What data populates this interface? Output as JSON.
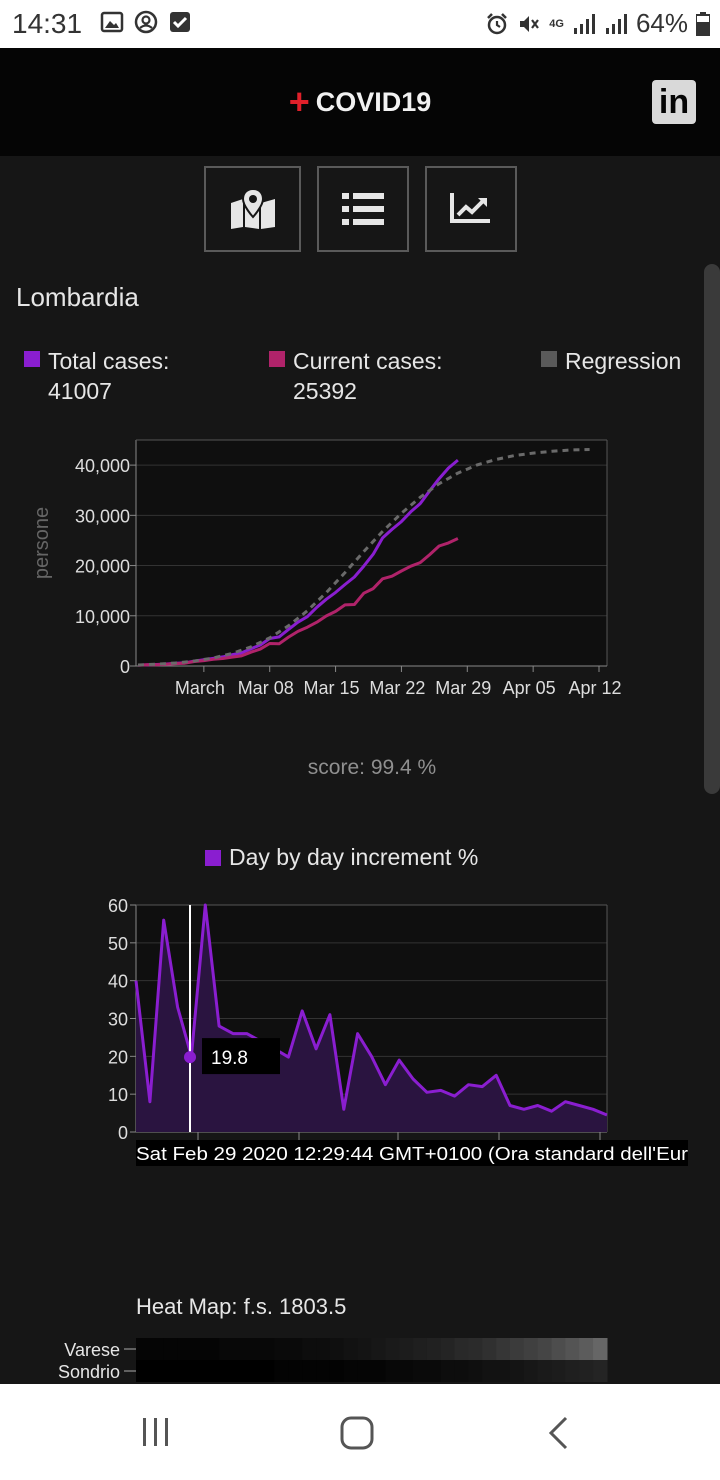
{
  "status_bar": {
    "time": "14:31",
    "network": "4G",
    "battery": "64%"
  },
  "app": {
    "title": "COVID19",
    "brand_color": "#e0202a",
    "linkedin_text": "in"
  },
  "nav_buttons": [
    {
      "icon": "map-icon"
    },
    {
      "icon": "list-icon"
    },
    {
      "icon": "chart-icon"
    }
  ],
  "region": "Lombardia",
  "legend": {
    "total_label": "Total cases:",
    "total_value": "41007",
    "current_label": "Current cases:",
    "current_value": "25392",
    "regression_label": "Regression",
    "colors": {
      "total": "#8a1ed0",
      "current": "#b0236a",
      "regression": "#5a5a5a"
    }
  },
  "score_text": "score: 99.4 %",
  "increment_legend": "Day by day increment %",
  "tooltip": {
    "value": "19.8",
    "date": "Sat Feb 29 2020 12:29:44 GMT+0100 (Ora standard dell'Eur"
  },
  "heatmap": {
    "title": "Heat Map: f.s. 1803.5",
    "rows": [
      {
        "label": "Varese",
        "levels": [
          0.02,
          0.02,
          0.02,
          0.02,
          0.02,
          0.02,
          0.03,
          0.03,
          0.03,
          0.03,
          0.04,
          0.04,
          0.05,
          0.05,
          0.06,
          0.07,
          0.08,
          0.09,
          0.1,
          0.11,
          0.12,
          0.13,
          0.14,
          0.16,
          0.17,
          0.19,
          0.21,
          0.23,
          0.25,
          0.27,
          0.3,
          0.33,
          0.36,
          0.4
        ]
      },
      {
        "label": "Sondrio",
        "levels": [
          0.0,
          0.0,
          0.0,
          0.0,
          0.0,
          0.0,
          0.0,
          0.0,
          0.0,
          0.0,
          0.01,
          0.01,
          0.01,
          0.01,
          0.01,
          0.02,
          0.02,
          0.02,
          0.03,
          0.03,
          0.04,
          0.04,
          0.05,
          0.05,
          0.06,
          0.07,
          0.07,
          0.08,
          0.09,
          0.1,
          0.11,
          0.12,
          0.13,
          0.14
        ]
      }
    ]
  },
  "chart_data": [
    {
      "type": "line",
      "ylabel": "persone",
      "ylim": [
        0,
        45000
      ],
      "yticks": [
        0,
        10000,
        20000,
        30000,
        40000
      ],
      "ytick_labels": [
        "0",
        "10,000",
        "20,000",
        "30,000",
        "40,000"
      ],
      "xrange_days": [
        0,
        48
      ],
      "xticks": [
        {
          "day": 7,
          "label": "March"
        },
        {
          "day": 14,
          "label": "Mar 08"
        },
        {
          "day": 21,
          "label": "Mar 15"
        },
        {
          "day": 28,
          "label": "Mar 22"
        },
        {
          "day": 35,
          "label": "Mar 29"
        },
        {
          "day": 42,
          "label": "Apr 05"
        },
        {
          "day": 49,
          "label": "Apr 12"
        }
      ],
      "series": [
        {
          "name": "Total cases",
          "color": "#8a1ed0",
          "values": [
            [
              0,
              172
            ],
            [
              1,
              240
            ],
            [
              2,
              305
            ],
            [
              3,
              403
            ],
            [
              4,
              531
            ],
            [
              5,
              615
            ],
            [
              6,
              984
            ],
            [
              7,
              1254
            ],
            [
              8,
              1520
            ],
            [
              9,
              1820
            ],
            [
              10,
              2251
            ],
            [
              11,
              2612
            ],
            [
              12,
              3420
            ],
            [
              13,
              4189
            ],
            [
              14,
              5469
            ],
            [
              15,
              5791
            ],
            [
              16,
              7280
            ],
            [
              17,
              8725
            ],
            [
              18,
              9820
            ],
            [
              19,
              11685
            ],
            [
              20,
              13272
            ],
            [
              21,
              14649
            ],
            [
              22,
              16220
            ],
            [
              23,
              17713
            ],
            [
              24,
              19884
            ],
            [
              25,
              22264
            ],
            [
              26,
              25515
            ],
            [
              27,
              27206
            ],
            [
              28,
              28761
            ],
            [
              29,
              30703
            ],
            [
              30,
              32346
            ],
            [
              31,
              34889
            ],
            [
              32,
              37298
            ],
            [
              33,
              39415
            ],
            [
              34,
              41007
            ]
          ]
        },
        {
          "name": "Current cases",
          "color": "#b0236a",
          "values": [
            [
              0,
              162
            ],
            [
              1,
              231
            ],
            [
              2,
              249
            ],
            [
              3,
              349
            ],
            [
              4,
              474
            ],
            [
              5,
              552
            ],
            [
              6,
              887
            ],
            [
              7,
              1077
            ],
            [
              8,
              1326
            ],
            [
              9,
              1497
            ],
            [
              10,
              1777
            ],
            [
              11,
              2008
            ],
            [
              12,
              2742
            ],
            [
              13,
              3372
            ],
            [
              14,
              4490
            ],
            [
              15,
              4427
            ],
            [
              16,
              5763
            ],
            [
              17,
              6896
            ],
            [
              18,
              7732
            ],
            [
              19,
              8725
            ],
            [
              20,
              9951
            ],
            [
              21,
              10881
            ],
            [
              22,
              12174
            ],
            [
              23,
              12255
            ],
            [
              24,
              14490
            ],
            [
              25,
              15420
            ],
            [
              26,
              17370
            ],
            [
              27,
              17885
            ],
            [
              28,
              18910
            ],
            [
              29,
              19868
            ],
            [
              30,
              20591
            ],
            [
              31,
              22189
            ],
            [
              32,
              23895
            ],
            [
              33,
              24509
            ],
            [
              34,
              25392
            ]
          ]
        },
        {
          "name": "Regression",
          "color": "#6a6a6a",
          "values": [
            [
              0,
              200
            ],
            [
              2,
              350
            ],
            [
              4,
              600
            ],
            [
              6,
              1000
            ],
            [
              8,
              1600
            ],
            [
              10,
              2500
            ],
            [
              12,
              3800
            ],
            [
              14,
              5600
            ],
            [
              16,
              8000
            ],
            [
              18,
              11000
            ],
            [
              20,
              14600
            ],
            [
              22,
              18600
            ],
            [
              24,
              22800
            ],
            [
              26,
              26800
            ],
            [
              28,
              30400
            ],
            [
              30,
              33600
            ],
            [
              32,
              36300
            ],
            [
              34,
              38400
            ],
            [
              36,
              40000
            ],
            [
              38,
              41100
            ],
            [
              40,
              41900
            ],
            [
              42,
              42400
            ],
            [
              44,
              42750
            ],
            [
              46,
              43000
            ],
            [
              48,
              43100
            ]
          ]
        }
      ]
    },
    {
      "type": "area",
      "ylim": [
        0,
        60
      ],
      "yticks": [
        0,
        10,
        20,
        30,
        40,
        50,
        60
      ],
      "series": [
        {
          "name": "Day by day increment %",
          "color": "#8a1ed0",
          "values": [
            40,
            8,
            56,
            33,
            20,
            60,
            28,
            26,
            26,
            24,
            22,
            19.8,
            32,
            22,
            31,
            6,
            26,
            20,
            12.5,
            19,
            14,
            10.5,
            11,
            9.5,
            12.5,
            12,
            15,
            7,
            6,
            7,
            5.5,
            8,
            7,
            6,
            4.5
          ]
        }
      ]
    }
  ]
}
